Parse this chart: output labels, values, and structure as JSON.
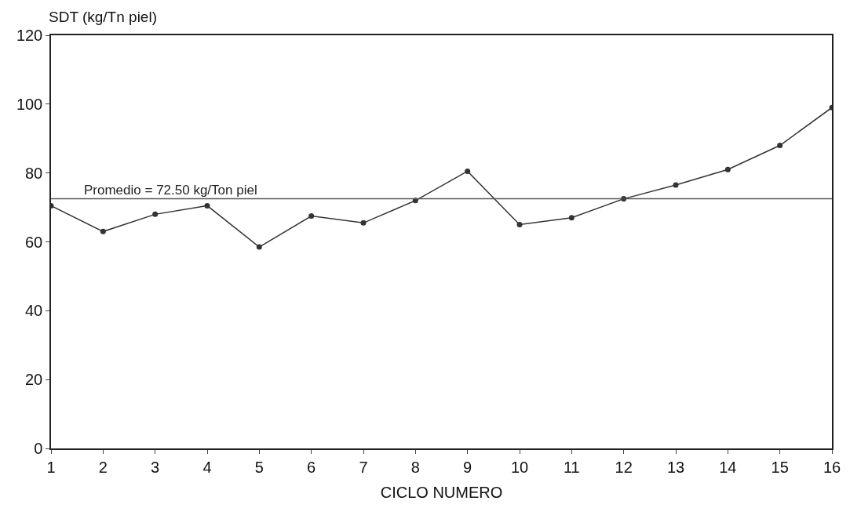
{
  "chart_data": {
    "type": "line",
    "ylabel": "SDT (kg/Tn piel)",
    "xlabel": "CICLO NUMERO",
    "x": [
      1,
      2,
      3,
      4,
      5,
      6,
      7,
      8,
      9,
      10,
      11,
      12,
      13,
      14,
      15,
      16
    ],
    "series": [
      {
        "color": "#333333",
        "values": [
          70.5,
          63,
          68,
          70.5,
          58.5,
          67.5,
          65.5,
          72,
          80.5,
          65,
          67,
          72.5,
          76.5,
          81,
          88,
          99
        ]
      }
    ],
    "xlim": [
      1,
      16
    ],
    "xticks": [
      1,
      2,
      3,
      4,
      5,
      6,
      7,
      8,
      9,
      10,
      11,
      12,
      13,
      14,
      15,
      16
    ],
    "ylim": [
      0,
      120
    ],
    "yticks": [
      0,
      20,
      40,
      60,
      80,
      100,
      120
    ],
    "ref_lines": [
      {
        "axis": "y",
        "value": 72.5,
        "label": "Promedio = 72.50 kg/Ton piel",
        "color": "#555555"
      }
    ],
    "marker": "circle",
    "line_style": "solid"
  }
}
